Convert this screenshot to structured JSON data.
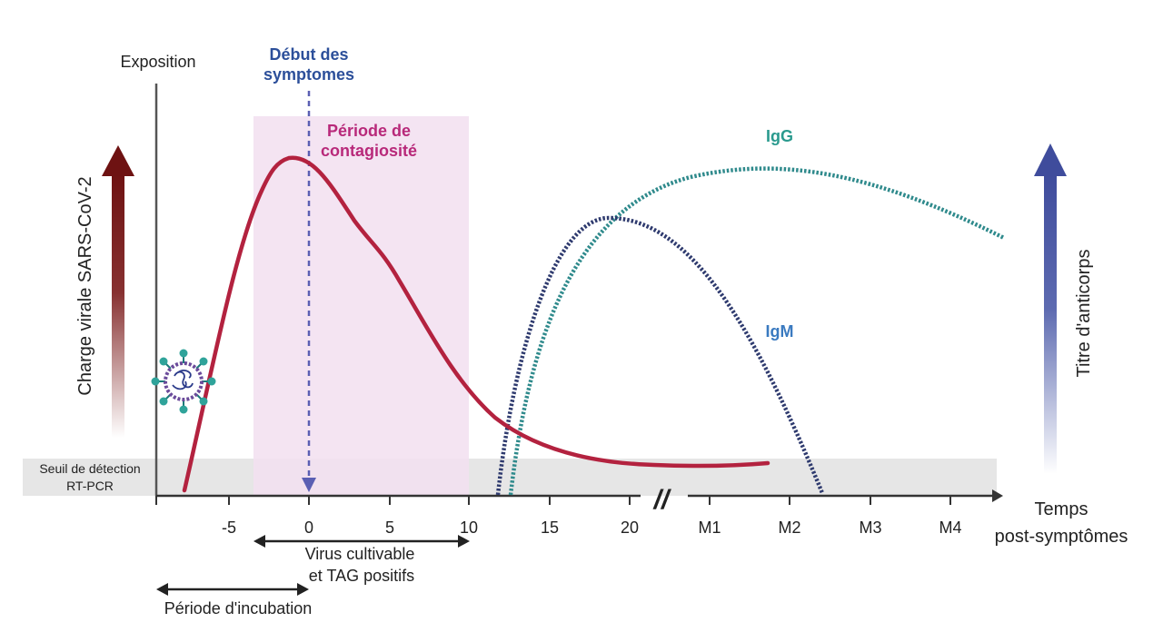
{
  "labels": {
    "exposition": "Exposition",
    "debut_line1": "Début des",
    "debut_line2": "symptomes",
    "contagion_line1": "Période de",
    "contagion_line2": "contagiosité",
    "igg": "IgG",
    "igm": "IgM",
    "charge_virale": "Charge virale SARS-CoV-2",
    "titre_anticorps": "Titre d'anticorps",
    "seuil_line1": "Seuil de détection",
    "seuil_line2": "RT-PCR",
    "temps_line1": "Temps",
    "temps_line2": "post-symptômes",
    "virus_line1": "Virus cultivable",
    "virus_line2": "et TAG positifs",
    "incubation": "Période d'incubation",
    "axis_break": "//"
  },
  "ticks": [
    "-5",
    "0",
    "5",
    "10",
    "15",
    "20",
    "M1",
    "M2",
    "M3",
    "M4"
  ],
  "colors": {
    "viral_load": "#b3223f",
    "contagion_band": "#f2dff0",
    "contagion_text": "#b8297a",
    "symptom_line": "#5a5fb3",
    "symptom_text": "#2c4f9a",
    "igg": "#2f8a8c",
    "igg_text": "#2a9a8e",
    "igm": "#2e3a6e",
    "igm_text": "#3a7ac0",
    "threshold_band": "#e6e6e6",
    "left_arrow": "#7a1a1a",
    "right_arrow": "#4b5aa8"
  },
  "icons": {
    "virus": "virus-icon"
  }
}
